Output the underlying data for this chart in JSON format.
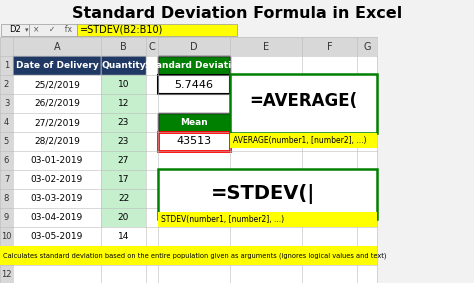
{
  "title": "Standard Deviation Formula in Excel",
  "formula_bar_cell": "D2",
  "formula_bar_formula": "=STDEV(B2:B10)",
  "dates": [
    "Date of Delivery",
    "25/2/2019",
    "26/2/2019",
    "27/2/2019",
    "28/2/2019",
    "03-01-2019",
    "03-02-2019",
    "03-03-2019",
    "03-04-2019",
    "03-05-2019",
    "",
    ""
  ],
  "quantities": [
    "Quantity",
    "10",
    "12",
    "23",
    "23",
    "27",
    "17",
    "22",
    "20",
    "14",
    "",
    ""
  ],
  "stdev_label": "Standard Deviation",
  "stdev_value": "5.7446",
  "mean_label": "Mean",
  "mean_value": "43513",
  "average_formula": "=AVERAGE(",
  "average_hint": "AVERAGE(number1, [number2], ...)",
  "stdev_formula": "=STDEV(",
  "stdev_hint": "STDEV(number1, [number2], ...)",
  "bottom_note": "Calculates standard deviation based on the entire population given as arguments (ignores logical values and text)",
  "col_b_highlight": "#C6EFCE",
  "stdev_header_bg": "#008000",
  "mean_header_bg": "#008000",
  "mean_value_border": "#FF0000",
  "average_box_border": "#008000",
  "stdev_box_border": "#008000",
  "hint_bg": "#FFFF00",
  "note_bg": "#FFFF00",
  "formula_bar_bg": "#FFFF00",
  "grid_color": "#BBBBBB",
  "row_num_bg": "#D8D8D8",
  "col_header_bg": "#D8D8D8",
  "header_row_bg": "#1F3864",
  "bg_white": "#FFFFFF"
}
